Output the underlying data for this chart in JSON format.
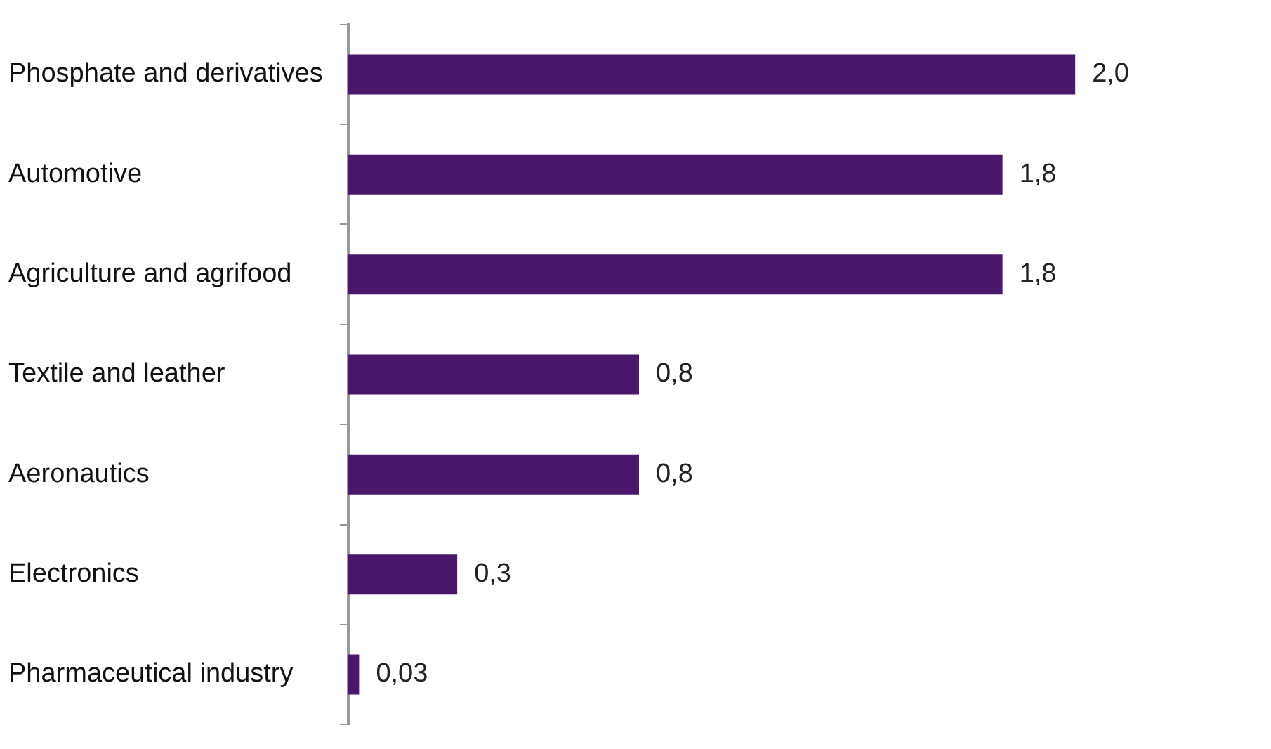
{
  "chart_data": {
    "type": "bar",
    "orientation": "horizontal",
    "categories": [
      "Phosphate and derivatives",
      "Automotive",
      "Agriculture and agrifood",
      "Textile and leather",
      "Aeronautics",
      "Electronics",
      "Pharmaceutical industry"
    ],
    "values": [
      2.0,
      1.8,
      1.8,
      0.8,
      0.8,
      0.3,
      0.03
    ],
    "value_labels": [
      "2,0",
      "1,8",
      "1,8",
      "0,8",
      "0,8",
      "0,3",
      "0,03"
    ],
    "color": "#4b176b",
    "legend": false,
    "tick_labels": "y"
  }
}
